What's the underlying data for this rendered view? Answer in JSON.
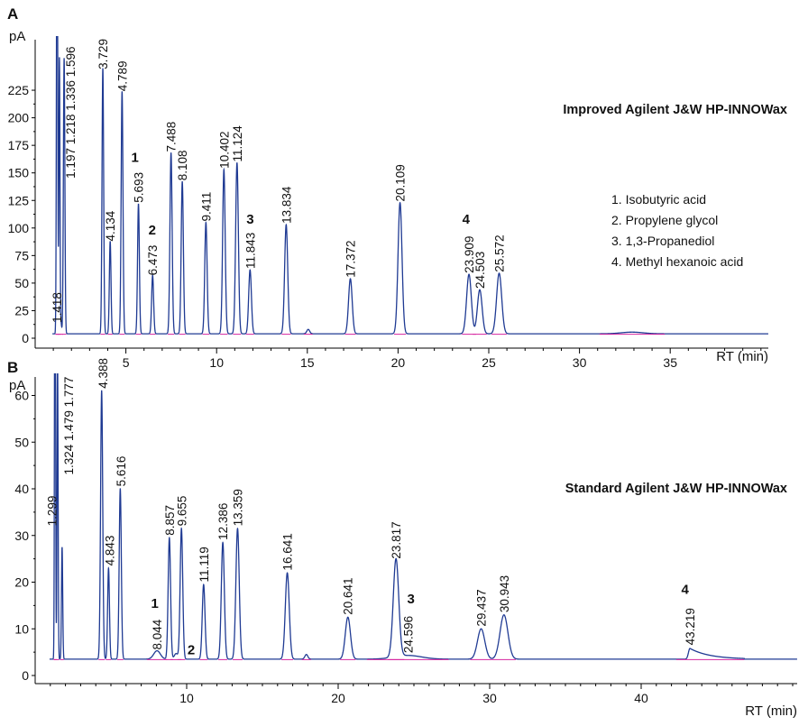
{
  "chart_data": [
    {
      "panel": "A",
      "type": "line",
      "title": "Improved Agilent J&W HP-INNOWax",
      "ylabel": "pA",
      "xlabel": "RT (min)",
      "xlim": [
        0,
        40.2
      ],
      "ylim": [
        -4,
        241
      ],
      "xticks": [
        5,
        10,
        15,
        20,
        25,
        30,
        35
      ],
      "yticks": [
        0,
        25,
        50,
        75,
        100,
        125,
        150,
        175,
        200,
        225
      ],
      "baseline": 4,
      "peaks": [
        {
          "rt": 1.197,
          "h": 250,
          "w": 0.03
        },
        {
          "rt": 1.218,
          "h": 250,
          "w": 0.03
        },
        {
          "rt": 1.336,
          "h": 250,
          "w": 0.03
        },
        {
          "rt": 1.418,
          "h": 10,
          "w": 0.04
        },
        {
          "rt": 1.596,
          "h": 250,
          "w": 0.04
        },
        {
          "rt": 3.729,
          "h": 241,
          "w": 0.045
        },
        {
          "rt": 4.134,
          "h": 84,
          "w": 0.045
        },
        {
          "rt": 4.789,
          "h": 220,
          "w": 0.05
        },
        {
          "rt": 5.693,
          "h": 118,
          "w": 0.05
        },
        {
          "rt": 6.473,
          "h": 53,
          "w": 0.055
        },
        {
          "rt": 7.488,
          "h": 164,
          "w": 0.06
        },
        {
          "rt": 8.108,
          "h": 138,
          "w": 0.06
        },
        {
          "rt": 9.411,
          "h": 101,
          "w": 0.065
        },
        {
          "rt": 10.402,
          "h": 149,
          "w": 0.07
        },
        {
          "rt": 11.124,
          "h": 155,
          "w": 0.075
        },
        {
          "rt": 11.843,
          "h": 58,
          "w": 0.075
        },
        {
          "rt": 13.834,
          "h": 99,
          "w": 0.085
        },
        {
          "rt": 15.05,
          "h": 4,
          "w": 0.08
        },
        {
          "rt": 17.372,
          "h": 50,
          "w": 0.1
        },
        {
          "rt": 20.109,
          "h": 119,
          "w": 0.11
        },
        {
          "rt": 23.909,
          "h": 54,
          "w": 0.13
        },
        {
          "rt": 24.503,
          "h": 40,
          "w": 0.13
        },
        {
          "rt": 25.572,
          "h": 55,
          "w": 0.14
        },
        {
          "rt": 32.9,
          "h": 1.5,
          "w": 0.6
        }
      ],
      "peak_labels": [
        {
          "text": "1.418",
          "rt": 1.2,
          "y": 14
        },
        {
          "text": "1.197 1.218 1.336 1.596",
          "rt": 1.95,
          "y": 145
        },
        {
          "text": "3.729",
          "rt": 3.73,
          "y": 244
        },
        {
          "text": "4.134",
          "rt": 4.134,
          "y": 88
        },
        {
          "text": "4.789",
          "rt": 4.789,
          "y": 224
        },
        {
          "text": "5.693",
          "rt": 5.693,
          "y": 123
        },
        {
          "text": "6.473",
          "rt": 6.473,
          "y": 57
        },
        {
          "text": "7.488",
          "rt": 7.488,
          "y": 169
        },
        {
          "text": "8.108",
          "rt": 8.108,
          "y": 143
        },
        {
          "text": "9.411",
          "rt": 9.411,
          "y": 106
        },
        {
          "text": "10.402",
          "rt": 10.402,
          "y": 154
        },
        {
          "text": "11.124",
          "rt": 11.124,
          "y": 160
        },
        {
          "text": "11.843",
          "rt": 11.843,
          "y": 63
        },
        {
          "text": "13.834",
          "rt": 13.834,
          "y": 104
        },
        {
          "text": "17.372",
          "rt": 17.372,
          "y": 55
        },
        {
          "text": "20.109",
          "rt": 20.109,
          "y": 124
        },
        {
          "text": "23.909",
          "rt": 23.909,
          "y": 59
        },
        {
          "text": "24.503",
          "rt": 24.503,
          "y": 45
        },
        {
          "text": "25.572",
          "rt": 25.572,
          "y": 60
        }
      ],
      "peak_numbers": [
        {
          "text": "1",
          "rt": 5.5,
          "y": 160
        },
        {
          "text": "2",
          "rt": 6.45,
          "y": 94
        },
        {
          "text": "3",
          "rt": 11.85,
          "y": 104
        },
        {
          "text": "4",
          "rt": 23.75,
          "y": 104
        }
      ],
      "legend": [
        "1. Isobutyric acid",
        "2. Propylene glycol",
        "3. 1,3-Propanediol",
        "4. Methyl hexanoic acid"
      ]
    },
    {
      "panel": "B",
      "type": "line",
      "title": "Standard Agilent J&W HP-INNOWax",
      "ylabel": "pA",
      "xlabel": "RT (min)",
      "xlim": [
        0,
        50.3
      ],
      "ylim": [
        -2,
        67
      ],
      "xticks": [
        10,
        20,
        30,
        40
      ],
      "yticks": [
        0,
        10,
        20,
        30,
        40,
        50,
        60
      ],
      "baseline": 3.5,
      "peaks": [
        {
          "rt": 1.299,
          "h": 64,
          "w": 0.03
        },
        {
          "rt": 1.324,
          "h": 64,
          "w": 0.03
        },
        {
          "rt": 1.479,
          "h": 64,
          "w": 0.035
        },
        {
          "rt": 1.777,
          "h": 24,
          "w": 0.04
        },
        {
          "rt": 4.388,
          "h": 57.5,
          "w": 0.07
        },
        {
          "rt": 4.843,
          "h": 19.5,
          "w": 0.06
        },
        {
          "rt": 5.616,
          "h": 36.5,
          "w": 0.07
        },
        {
          "rt": 8.044,
          "h": 1.8,
          "w": 0.22
        },
        {
          "rt": 8.857,
          "h": 26,
          "w": 0.08
        },
        {
          "rt": 9.3,
          "h": 1.2,
          "w": 0.12
        },
        {
          "rt": 9.655,
          "h": 28,
          "w": 0.085
        },
        {
          "rt": 11.119,
          "h": 16,
          "w": 0.09
        },
        {
          "rt": 12.386,
          "h": 25,
          "w": 0.1
        },
        {
          "rt": 13.359,
          "h": 28,
          "w": 0.11
        },
        {
          "rt": 16.641,
          "h": 18.5,
          "w": 0.13
        },
        {
          "rt": 17.9,
          "h": 1,
          "w": 0.1
        },
        {
          "rt": 20.641,
          "h": 9,
          "w": 0.17
        },
        {
          "rt": 23.817,
          "h": 21,
          "w": 0.18
        },
        {
          "rt": 24.596,
          "h": 0.8,
          "w": 0.9
        },
        {
          "rt": 29.437,
          "h": 6.5,
          "w": 0.24
        },
        {
          "rt": 30.943,
          "h": 9.5,
          "w": 0.26
        }
      ],
      "tailing_peaks": [
        {
          "rt": 43.219,
          "h": 2.3,
          "tail": 1.3,
          "end": 46.8
        }
      ],
      "peak_labels": [
        {
          "text": "1.299",
          "rt": 1.1,
          "y": 32
        },
        {
          "text": "1.324 1.479 1.777",
          "rt": 2.2,
          "y": 43
        },
        {
          "text": "4.388",
          "rt": 4.45,
          "y": 61.5
        },
        {
          "text": "4.843",
          "rt": 4.9,
          "y": 23.5
        },
        {
          "text": "5.616",
          "rt": 5.65,
          "y": 40.5
        },
        {
          "text": "8.044",
          "rt": 8.04,
          "y": 5.5
        },
        {
          "text": "8.857",
          "rt": 8.86,
          "y": 30
        },
        {
          "text": "9.655",
          "rt": 9.66,
          "y": 32
        },
        {
          "text": "11.119",
          "rt": 11.12,
          "y": 20
        },
        {
          "text": "12.386",
          "rt": 12.39,
          "y": 29
        },
        {
          "text": "13.359",
          "rt": 13.36,
          "y": 32
        },
        {
          "text": "16.641",
          "rt": 16.64,
          "y": 22.5
        },
        {
          "text": "20.641",
          "rt": 20.64,
          "y": 13
        },
        {
          "text": "23.817",
          "rt": 23.82,
          "y": 25
        },
        {
          "text": "24.596",
          "rt": 24.6,
          "y": 4.8
        },
        {
          "text": "29.437",
          "rt": 29.44,
          "y": 10.5
        },
        {
          "text": "30.943",
          "rt": 30.94,
          "y": 13.5
        },
        {
          "text": "43.219",
          "rt": 43.22,
          "y": 6.5
        }
      ],
      "peak_numbers": [
        {
          "text": "1",
          "rt": 7.9,
          "y": 14.5
        },
        {
          "text": "2",
          "rt": 10.3,
          "y": 4.5
        },
        {
          "text": "3",
          "rt": 24.8,
          "y": 15.5
        },
        {
          "text": "4",
          "rt": 42.9,
          "y": 17.5
        }
      ]
    }
  ],
  "panel_labels": [
    "A",
    "B"
  ],
  "colors": {
    "trace": "#1f3a93",
    "baseline_marks": "#d6249f",
    "axis": "#000000",
    "text": "#111111"
  }
}
